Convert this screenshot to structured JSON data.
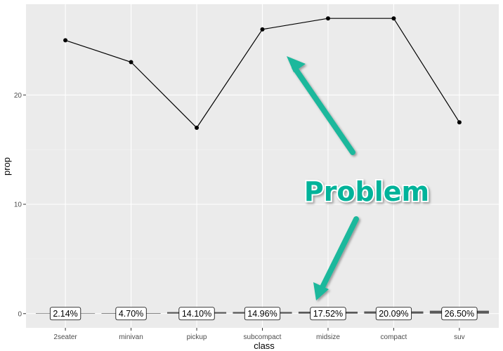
{
  "chart_data": {
    "type": "line",
    "title": "",
    "xlabel": "class",
    "ylabel": "prop",
    "categories": [
      "2seater",
      "minivan",
      "pickup",
      "subcompact",
      "midsize",
      "compact",
      "suv"
    ],
    "series": [
      {
        "values": [
          25,
          23,
          17,
          26,
          27,
          27,
          17.5
        ]
      }
    ],
    "bars": {
      "type": "bar",
      "values": [
        0.0214,
        0.047,
        0.141,
        0.1496,
        0.1752,
        0.2009,
        0.265
      ],
      "labels": [
        "2.14%",
        "4.70%",
        "14.10%",
        "14.96%",
        "17.52%",
        "20.09%",
        "26.50%"
      ]
    },
    "ylim": [
      -1.3,
      28.3
    ],
    "yticks": [
      0,
      10,
      20
    ],
    "grid": true,
    "legend": "none",
    "annotation": {
      "text": "Problem",
      "color": "#00B39A",
      "arrow_color": "#1DB89C"
    }
  },
  "colors": {
    "panel_background": "#EBEBEB",
    "grid_major": "#FFFFFF",
    "grid_minor": "#F5F5F5",
    "line": "#000000",
    "bar": "#595959"
  }
}
